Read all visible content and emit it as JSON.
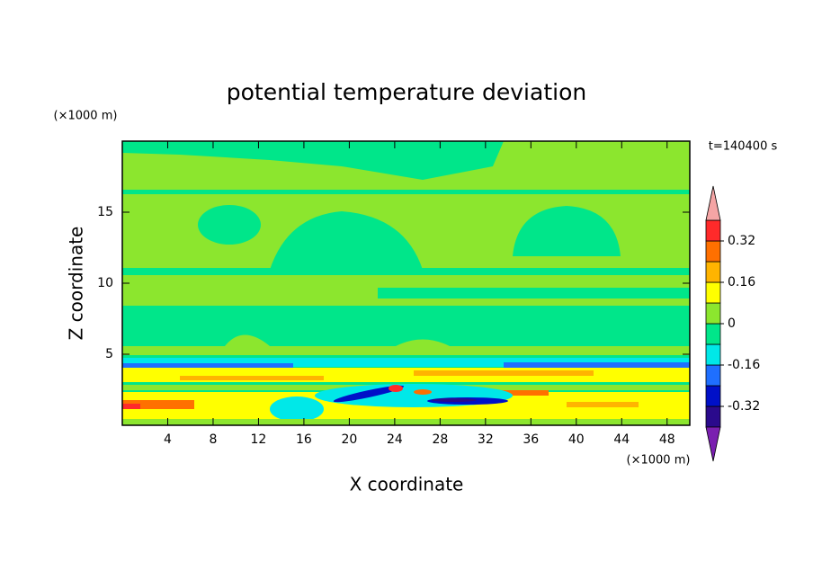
{
  "chart_data": {
    "type": "contour",
    "title": "potential temperature deviation",
    "x_label": "X coordinate",
    "y_label": "Z coordinate",
    "x_unit": "(×1000 m)",
    "y_unit": "(×1000 m)",
    "annotation": "t=140400 s",
    "xlim": [
      0,
      50
    ],
    "xticks": [
      4,
      8,
      12,
      16,
      20,
      24,
      28,
      32,
      36,
      40,
      44,
      48
    ],
    "ylim": [
      0,
      20
    ],
    "yticks": [
      5,
      10,
      15
    ],
    "levels": [
      -0.4,
      -0.32,
      -0.24,
      -0.16,
      -0.08,
      0,
      0.08,
      0.16,
      0.24,
      0.32,
      0.4
    ],
    "colors": [
      "#7a1fb0",
      "#2a0a8c",
      "#0010c8",
      "#1f6fff",
      "#00e8e8",
      "#00e68a",
      "#8ce62e",
      "#ffff00",
      "#ffb400",
      "#ff7000",
      "#ff2a2a",
      "#f5a5a5"
    ],
    "colorbar_ticks": [
      -0.32,
      -0.16,
      0,
      0.16,
      0.32
    ]
  }
}
